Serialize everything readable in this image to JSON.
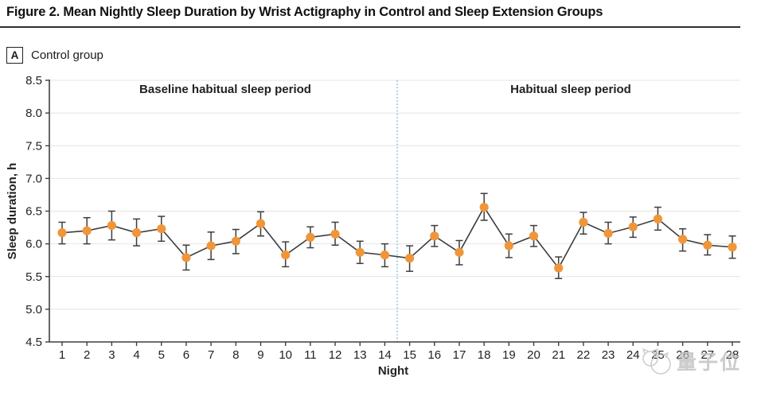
{
  "figure": {
    "title": "Figure 2. Mean Nightly Sleep Duration by Wrist Actigraphy in Control and Sleep Extension Groups",
    "panel_label": "A",
    "panel_title": "Control group"
  },
  "chart_data": {
    "type": "line",
    "title": "Control group",
    "xlabel": "Night",
    "ylabel": "Sleep duration, h",
    "ylim": [
      4.5,
      8.5
    ],
    "y_ticks": [
      8.5,
      8.0,
      7.5,
      7.0,
      6.5,
      6.0,
      5.5,
      5.0,
      4.5
    ],
    "x": [
      1,
      2,
      3,
      4,
      5,
      6,
      7,
      8,
      9,
      10,
      11,
      12,
      13,
      14,
      15,
      16,
      17,
      18,
      19,
      20,
      21,
      22,
      23,
      24,
      25,
      26,
      27,
      28
    ],
    "series": [
      {
        "name": "Mean nightly sleep duration (control group)",
        "values": [
          6.17,
          6.2,
          6.28,
          6.17,
          6.23,
          5.79,
          5.97,
          6.04,
          6.31,
          5.83,
          6.1,
          6.15,
          5.87,
          5.83,
          5.78,
          6.12,
          5.87,
          6.56,
          5.97,
          6.12,
          5.63,
          6.33,
          6.16,
          6.26,
          6.38,
          6.07,
          5.98,
          5.95
        ],
        "error_low": [
          6.0,
          6.0,
          6.06,
          5.97,
          6.04,
          5.6,
          5.76,
          5.85,
          6.12,
          5.65,
          5.94,
          5.98,
          5.7,
          5.65,
          5.58,
          5.96,
          5.68,
          6.36,
          5.79,
          5.96,
          5.47,
          6.15,
          6.0,
          6.1,
          6.21,
          5.89,
          5.83,
          5.78
        ],
        "error_high": [
          6.33,
          6.4,
          6.5,
          6.38,
          6.42,
          5.98,
          6.18,
          6.22,
          6.49,
          6.03,
          6.26,
          6.33,
          6.04,
          6.0,
          5.97,
          6.28,
          6.05,
          6.77,
          6.15,
          6.28,
          5.8,
          6.48,
          6.33,
          6.41,
          6.56,
          6.23,
          6.14,
          6.12
        ]
      }
    ],
    "annotations": {
      "baseline_section_label": "Baseline habitual sleep period",
      "habitual_section_label": "Habitual sleep period",
      "separator_x": 14.5
    },
    "grid": true,
    "legend_position": "none",
    "colors": {
      "marker": "#F09639",
      "line": "#3d3d3d",
      "grid": "#e4e4e4",
      "axis": "#3f3f3f",
      "separator": "#79C3DB"
    }
  },
  "watermark": {
    "text": "量子位"
  }
}
